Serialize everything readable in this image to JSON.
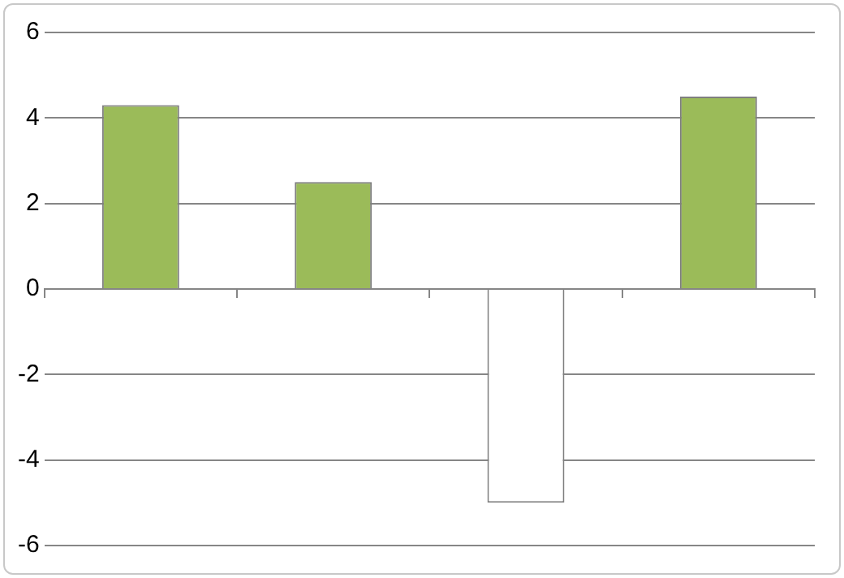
{
  "chart_data": {
    "type": "bar",
    "categories": [
      null,
      null,
      null,
      null
    ],
    "values": [
      4.3,
      2.5,
      -5,
      4.5
    ],
    "colors": [
      "#9bbb59",
      "#9bbb59",
      "#ffffff",
      "#9bbb59"
    ],
    "ylim": [
      -6,
      6
    ],
    "yticks": [
      -6,
      -4,
      -2,
      0,
      2,
      4,
      6
    ],
    "grid": "y",
    "legend": false
  }
}
